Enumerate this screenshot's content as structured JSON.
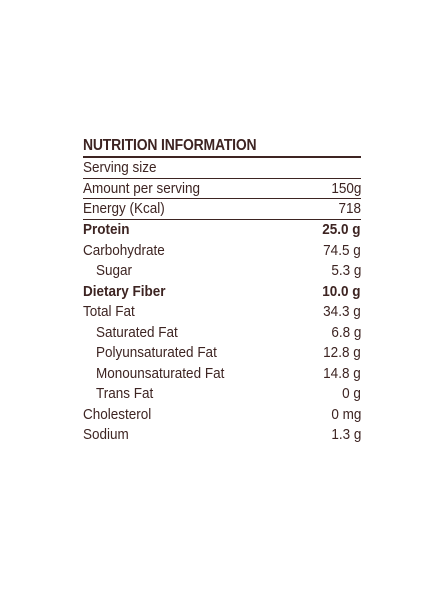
{
  "colors": {
    "ink": "#3d2422"
  },
  "nutrition": {
    "title": "NUTRITION INFORMATION",
    "rows": [
      {
        "label": "Serving size",
        "value": ""
      },
      {
        "label": "Amount per serving",
        "value": "150g"
      },
      {
        "label": "Energy (Kcal)",
        "value": "718"
      },
      {
        "label": "Protein",
        "value": "25.0 g"
      },
      {
        "label": "Carbohydrate",
        "value": "74.5 g"
      },
      {
        "label": "Sugar",
        "value": "5.3 g"
      },
      {
        "label": "Dietary Fiber",
        "value": "10.0 g"
      },
      {
        "label": "Total Fat",
        "value": "34.3 g"
      },
      {
        "label": "Saturated Fat",
        "value": "6.8 g"
      },
      {
        "label": "Polyunsaturated Fat",
        "value": "12.8 g"
      },
      {
        "label": "Monounsaturated Fat",
        "value": "14.8 g"
      },
      {
        "label": "Trans Fat",
        "value": "0 g"
      },
      {
        "label": "Cholesterol",
        "value": "0 mg"
      },
      {
        "label": "Sodium",
        "value": "1.3 g"
      }
    ]
  }
}
